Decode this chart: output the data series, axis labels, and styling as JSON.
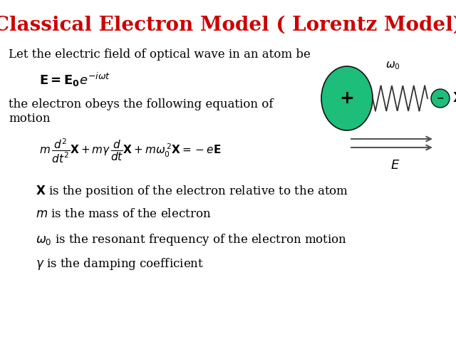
{
  "title": "Classical Electron Model ( Lorentz Model)",
  "title_color": "#CC0000",
  "title_fontsize": 20,
  "bg_color": "#FFFFFF",
  "text1": "Let the electric field of optical wave in an atom be",
  "formula_E": "$\\mathbf{E=E_0}e^{-i\\omega t}$",
  "text2": "the electron obeys the following equation of\nmotion",
  "equation": "$m\\,\\dfrac{d^2}{dt^2}\\mathbf{X}+m\\gamma\\,\\dfrac{d}{dt}\\mathbf{X}+m\\omega_0^{\\,2}\\mathbf{X}=-e\\mathbf{E}$",
  "bullet1": "$\\mathbf{X}$ is the position of the electron relative to the atom",
  "bullet2": "$m$ is the mass of the electron",
  "bullet3": "$\\omega_0$ is the resonant frequency of the electron motion",
  "bullet4": "$\\gamma$ is the damping coefficient",
  "atom_color": "#1DBD7A",
  "electron_color": "#1DBD7A",
  "spring_color": "#333333",
  "arrow_color": "#555555"
}
